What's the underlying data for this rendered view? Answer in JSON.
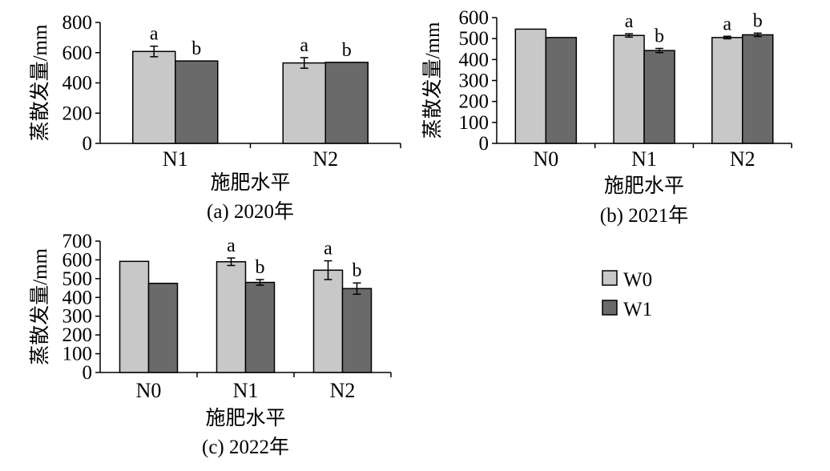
{
  "colors": {
    "W0": "#c8c8c8",
    "W1": "#6a6a6a",
    "axis": "#000000"
  },
  "legend": {
    "items": [
      "W0",
      "W1"
    ]
  },
  "chart_data": [
    {
      "type": "bar",
      "caption": "(a) 2020年",
      "xlabel": "施肥水平",
      "ylabel": "蒸散发量/mm",
      "categories": [
        "N1",
        "N2"
      ],
      "yticks": [
        "0",
        "200",
        "400",
        "600",
        "800"
      ],
      "ylim": [
        0,
        800
      ],
      "series": [
        {
          "name": "W0",
          "values": [
            608,
            532
          ],
          "errors": [
            35,
            35
          ]
        },
        {
          "name": "W1",
          "values": [
            545,
            536
          ],
          "errors": [
            0,
            0
          ]
        }
      ],
      "letters": [
        [
          "a",
          "b"
        ],
        [
          "a",
          "b"
        ]
      ]
    },
    {
      "type": "bar",
      "caption": "(b) 2021年",
      "xlabel": "施肥水平",
      "ylabel": "蒸散发量/mm",
      "categories": [
        "N0",
        "N1",
        "N2"
      ],
      "yticks": [
        "0",
        "100",
        "200",
        "300",
        "400",
        "500",
        "600"
      ],
      "ylim": [
        0,
        600
      ],
      "series": [
        {
          "name": "W0",
          "values": [
            545,
            515,
            505
          ],
          "errors": [
            0,
            8,
            6
          ]
        },
        {
          "name": "W1",
          "values": [
            505,
            443,
            518
          ],
          "errors": [
            0,
            10,
            8
          ]
        }
      ],
      "letters": [
        [
          "",
          ""
        ],
        [
          "a",
          "b"
        ],
        [
          "a",
          "b"
        ]
      ]
    },
    {
      "type": "bar",
      "caption": "(c) 2022年",
      "xlabel": "施肥水平",
      "ylabel": "蒸散发量/mm",
      "categories": [
        "N0",
        "N1",
        "N2"
      ],
      "yticks": [
        "0",
        "100",
        "200",
        "300",
        "400",
        "500",
        "600",
        "700"
      ],
      "ylim": [
        0,
        700
      ],
      "series": [
        {
          "name": "W0",
          "values": [
            592,
            590,
            545
          ],
          "errors": [
            0,
            20,
            50
          ]
        },
        {
          "name": "W1",
          "values": [
            475,
            480,
            447
          ],
          "errors": [
            0,
            15,
            30
          ]
        }
      ],
      "letters": [
        [
          "",
          ""
        ],
        [
          "a",
          "b"
        ],
        [
          "a",
          "b"
        ]
      ]
    }
  ]
}
